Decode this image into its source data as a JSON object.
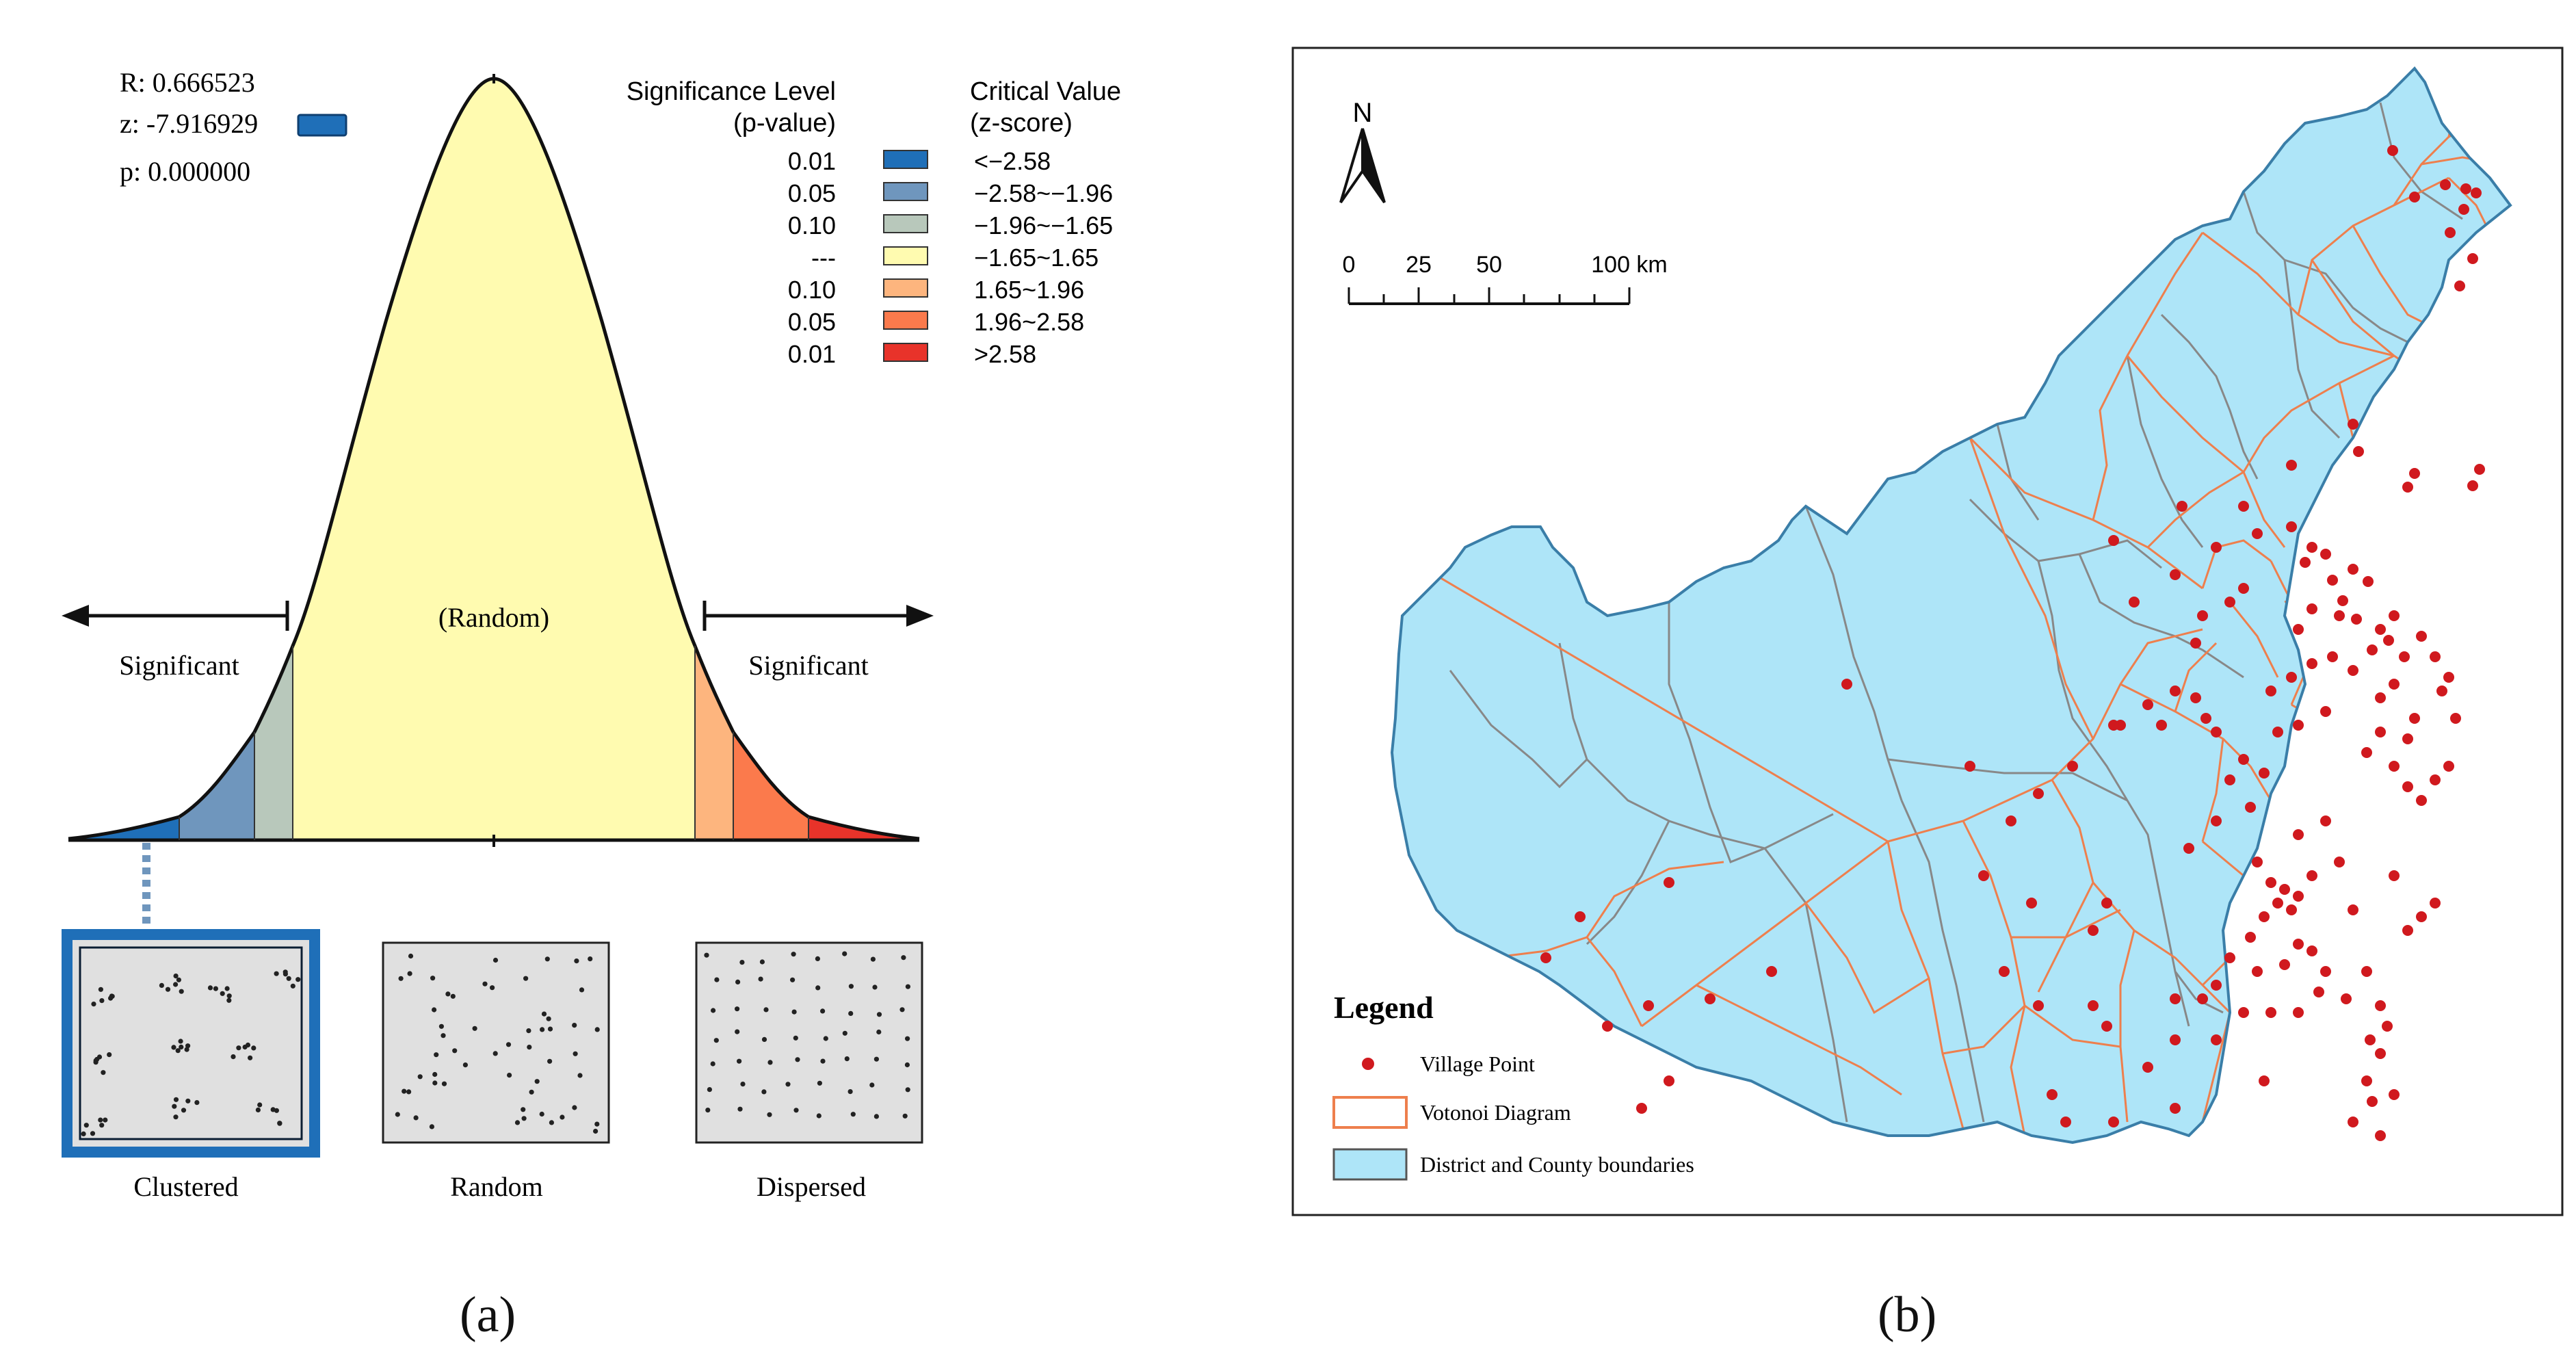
{
  "panel_a": {
    "stats": {
      "r": "R: 0.666523",
      "z": "z: -7.916929",
      "p": "p: 0.000000"
    },
    "legend": {
      "sig_header_1": "Significance Level",
      "sig_header_2": "(p-value)",
      "crit_header_1": "Critical Value",
      "crit_header_2": "(z-score)",
      "rows": [
        {
          "p": "0.01",
          "z": "<−2.58",
          "color": "#1f6fb8"
        },
        {
          "p": "0.05",
          "z": "−2.58~−1.96",
          "color": "#6f96bd"
        },
        {
          "p": "0.10",
          "z": "−1.96~−1.65",
          "color": "#b8c8bb"
        },
        {
          "p": "---",
          "z": "−1.65~1.65",
          "color": "#fffbb0"
        },
        {
          "p": "0.10",
          "z": "1.65~1.96",
          "color": "#fdb57e"
        },
        {
          "p": "0.05",
          "z": "1.96~2.58",
          "color": "#fb7a4c"
        },
        {
          "p": "0.01",
          "z": ">2.58",
          "color": "#e8332a"
        }
      ]
    },
    "curve": {
      "center_label": "(Random)",
      "left_label": "Significant",
      "right_label": "Significant"
    },
    "patterns": {
      "clustered": "Clustered",
      "random": "Random",
      "dispersed": "Dispersed"
    },
    "caption": "(a)"
  },
  "panel_b": {
    "north": "N",
    "scale": {
      "t0": "0",
      "t1": "25",
      "t2": "50",
      "t3": "100 km"
    },
    "legend": {
      "title": "Legend",
      "village": "Village Point",
      "voronoi": "Votonoi Diagram",
      "boundary": "District and County boundaries"
    },
    "colors": {
      "land": "#aee5f8",
      "voronoi": "#ee7f4d",
      "boundary": "#888888",
      "village": "#d0191e"
    },
    "caption": "(b)"
  }
}
